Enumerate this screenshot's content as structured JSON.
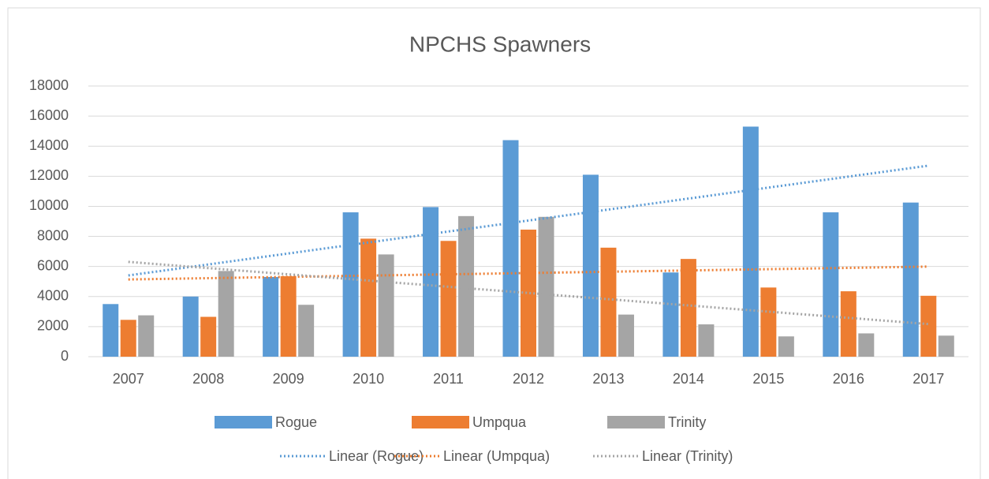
{
  "chart_data": {
    "type": "bar",
    "title": "NPCHS Spawners",
    "categories": [
      "2007",
      "2008",
      "2009",
      "2010",
      "2011",
      "2012",
      "2013",
      "2014",
      "2015",
      "2016",
      "2017"
    ],
    "series": [
      {
        "name": "Rogue",
        "color": "#5b9bd5",
        "values": [
          3500,
          4000,
          5300,
          9600,
          9950,
          14400,
          12100,
          5600,
          15300,
          9600,
          10250
        ],
        "trendline": {
          "type": "linear",
          "name": "Linear (Rogue)"
        }
      },
      {
        "name": "Umpqua",
        "color": "#ed7d31",
        "values": [
          2450,
          2650,
          5350,
          7850,
          7700,
          8450,
          7250,
          6500,
          4600,
          4350,
          4050
        ],
        "trendline": {
          "type": "linear",
          "name": "Linear (Umpqua)"
        }
      },
      {
        "name": "Trinity",
        "color": "#a5a5a5",
        "values": [
          2750,
          5700,
          3450,
          6800,
          9350,
          9300,
          2800,
          2150,
          1350,
          1550,
          1400
        ],
        "trendline": {
          "type": "linear",
          "name": "Linear (Trinity)"
        }
      }
    ],
    "ylim": [
      0,
      18000
    ],
    "yticks": [
      0,
      2000,
      4000,
      6000,
      8000,
      10000,
      12000,
      14000,
      16000,
      18000
    ],
    "grid": true,
    "legend": "bottom"
  }
}
